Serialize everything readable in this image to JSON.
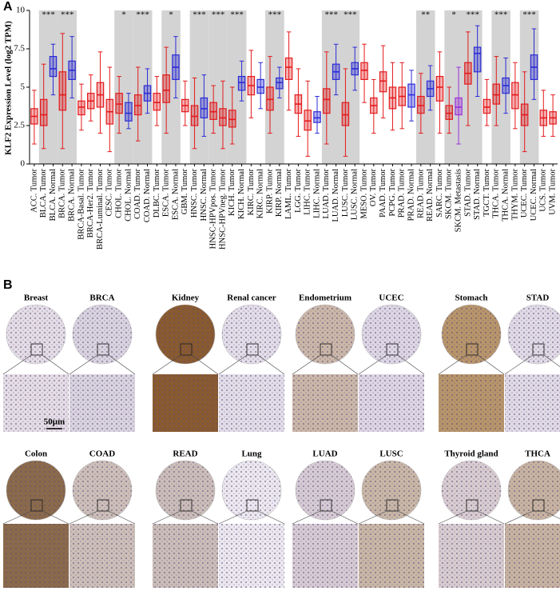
{
  "panel_a": {
    "label": "A"
  },
  "chart_data": {
    "type": "box",
    "y_label": "KLF2 Expression Level (log2 TPM)",
    "ylim": [
      0,
      10
    ],
    "yticks": [
      0,
      2.5,
      5,
      7.5,
      10
    ],
    "categories": [
      "ACC. Tumor",
      "BLCA. Tumor",
      "BLCA. Normal",
      "BRCA. Tumor",
      "BRCA. Normal",
      "BRCA-Basal. Tumor",
      "BRCA-Her2. Tumor",
      "BRCA-Luminal. Tumor",
      "CESC. Tumor",
      "CHOL. Tumor",
      "CHOL. Normal",
      "COAD. Tumor",
      "COAD. Normal",
      "DLBC. Tumor",
      "ESCA. Tumor",
      "ESCA. Normal",
      "GBM. Tumor",
      "HNSC. Tumor",
      "HNSC. Normal",
      "HNSC-HPVpos. Tumor",
      "HNSC-HPVneg. Tumor",
      "KICH. Tumor",
      "KICH. Normal",
      "KIRC. Tumor",
      "KIRC. Normal",
      "KIRP. Tumor",
      "KIRP. Normal",
      "LAML. Tumor",
      "LGG. Tumor",
      "LIHC. Tumor",
      "LIHC. Normal",
      "LUAD. Tumor",
      "LUAD. Normal",
      "LUSC. Tumor",
      "LUSC. Normal",
      "MESO. Tumor",
      "OV. Tumor",
      "PAAD. Tumor",
      "PCPG. Tumor",
      "PRAD. Tumor",
      "PRAD. Normal",
      "READ. Tumor",
      "READ. Normal",
      "SARC. Tumor",
      "SKCM. Tumor",
      "SKCM. Metastasis",
      "STAD. Tumor",
      "STAD. Normal",
      "TGCT. Tumor",
      "THCA. Tumor",
      "THCA. Normal",
      "THYM. Tumor",
      "UCEC. Tumor",
      "UCEC. Normal",
      "UCS. Tumor",
      "UVM. Tumor"
    ],
    "whisker_low": [
      1.3,
      1.0,
      4.5,
      1.0,
      4.3,
      2.2,
      2.8,
      2.0,
      0.8,
      2.0,
      2.3,
      1.5,
      3.3,
      2.5,
      2.0,
      4.3,
      2.5,
      1.0,
      1.8,
      2.0,
      1.0,
      1.3,
      4.1,
      3.0,
      3.6,
      2.0,
      4.3,
      3.5,
      1.8,
      0.5,
      2.0,
      1.3,
      4.5,
      0.5,
      4.8,
      4.0,
      2.0,
      3.0,
      2.2,
      2.3,
      2.8,
      2.0,
      3.5,
      2.0,
      2.0,
      1.3,
      2.5,
      4.4,
      2.5,
      2.5,
      3.3,
      2.3,
      0.8,
      4.2,
      1.8,
      1.8
    ],
    "q1": [
      2.6,
      2.5,
      5.7,
      3.5,
      5.5,
      3.2,
      3.6,
      3.7,
      2.6,
      3.3,
      2.8,
      3.2,
      4.1,
      3.5,
      4.0,
      5.5,
      3.4,
      2.5,
      3.0,
      2.9,
      2.5,
      2.4,
      4.8,
      4.5,
      4.6,
      3.5,
      4.9,
      5.5,
      3.3,
      2.2,
      2.7,
      3.3,
      5.5,
      2.5,
      5.8,
      5.5,
      3.3,
      4.7,
      3.6,
      3.8,
      3.7,
      3.3,
      4.4,
      4.1,
      2.9,
      3.2,
      5.2,
      6.0,
      3.3,
      3.9,
      4.6,
      3.6,
      2.5,
      5.5,
      2.5,
      2.6
    ],
    "median": [
      3.1,
      3.2,
      6.2,
      4.5,
      6.1,
      3.7,
      4.1,
      4.5,
      3.4,
      3.9,
      3.3,
      3.8,
      4.6,
      4.0,
      4.8,
      6.3,
      3.8,
      3.1,
      3.6,
      3.4,
      3.0,
      2.9,
      5.3,
      5.1,
      5.0,
      4.2,
      5.3,
      6.3,
      3.9,
      2.8,
      3.0,
      4.2,
      6.0,
      3.2,
      6.2,
      6.1,
      3.8,
      5.4,
      4.3,
      4.4,
      4.5,
      3.8,
      4.9,
      5.0,
      3.3,
      3.7,
      5.9,
      7.2,
      3.7,
      4.5,
      5.1,
      4.5,
      3.2,
      6.3,
      3.0,
      3.0
    ],
    "q3": [
      3.6,
      4.2,
      7.0,
      6.0,
      6.7,
      4.1,
      4.6,
      5.3,
      4.2,
      4.6,
      4.0,
      4.5,
      5.1,
      4.6,
      5.8,
      7.1,
      4.2,
      3.8,
      4.3,
      4.0,
      3.6,
      3.5,
      5.7,
      5.7,
      5.5,
      5.0,
      5.6,
      6.9,
      4.5,
      3.5,
      3.4,
      4.9,
      6.5,
      4.0,
      6.6,
      6.6,
      4.3,
      6.0,
      5.0,
      5.0,
      5.2,
      4.4,
      5.4,
      5.7,
      3.8,
      4.3,
      6.6,
      7.6,
      4.2,
      5.2,
      5.6,
      5.3,
      3.9,
      7.1,
      3.5,
      3.4
    ],
    "whisker_high": [
      4.8,
      6.5,
      7.8,
      8.5,
      8.3,
      5.2,
      5.8,
      7.3,
      6.3,
      5.7,
      4.6,
      6.3,
      6.2,
      5.7,
      7.6,
      8.3,
      5.4,
      5.6,
      5.8,
      5.1,
      5.4,
      5.0,
      6.7,
      7.4,
      6.6,
      7.0,
      6.3,
      8.6,
      6.2,
      5.4,
      4.4,
      7.3,
      7.8,
      6.2,
      7.6,
      7.8,
      5.5,
      7.7,
      6.6,
      6.6,
      6.1,
      5.9,
      6.4,
      7.3,
      5.0,
      6.3,
      8.6,
      9.0,
      5.5,
      7.0,
      6.9,
      6.6,
      6.0,
      8.8,
      4.8,
      4.5
    ],
    "colors": [
      "#e31a1c",
      "#e31a1c",
      "#2b2bd6",
      "#e31a1c",
      "#2b2bd6",
      "#e31a1c",
      "#e31a1c",
      "#e31a1c",
      "#e31a1c",
      "#e31a1c",
      "#2b2bd6",
      "#e31a1c",
      "#2b2bd6",
      "#e31a1c",
      "#e31a1c",
      "#2b2bd6",
      "#e31a1c",
      "#e31a1c",
      "#2b2bd6",
      "#e31a1c",
      "#e31a1c",
      "#e31a1c",
      "#2b2bd6",
      "#e31a1c",
      "#2b2bd6",
      "#e31a1c",
      "#2b2bd6",
      "#e31a1c",
      "#e31a1c",
      "#e31a1c",
      "#2b2bd6",
      "#e31a1c",
      "#2b2bd6",
      "#e31a1c",
      "#2b2bd6",
      "#e31a1c",
      "#e31a1c",
      "#e31a1c",
      "#e31a1c",
      "#e31a1c",
      "#2b2bd6",
      "#e31a1c",
      "#2b2bd6",
      "#e31a1c",
      "#e31a1c",
      "#9b30d9",
      "#e31a1c",
      "#2b2bd6",
      "#e31a1c",
      "#e31a1c",
      "#2b2bd6",
      "#e31a1c",
      "#e31a1c",
      "#2b2bd6",
      "#e31a1c",
      "#e31a1c"
    ],
    "significance": [
      null,
      null,
      "***",
      null,
      "***",
      null,
      null,
      null,
      null,
      null,
      "*",
      null,
      "***",
      null,
      null,
      "*",
      null,
      null,
      "***",
      null,
      "***",
      null,
      "***",
      null,
      null,
      null,
      "***",
      null,
      null,
      null,
      null,
      null,
      "***",
      null,
      "***",
      null,
      null,
      null,
      null,
      null,
      null,
      null,
      "**",
      null,
      null,
      "*",
      null,
      "***",
      null,
      null,
      "***",
      null,
      null,
      "***",
      null,
      null
    ]
  },
  "panel_b": {
    "label": "B",
    "scale_bar": "50μm",
    "rows": [
      [
        "Breast",
        "BRCA",
        "Kidney",
        "Renal cancer",
        "Endometrium",
        "UCEC",
        "Stomach",
        "STAD"
      ],
      [
        "Colon",
        "COAD",
        "READ",
        "Lung",
        "LUAD",
        "LUSC",
        "Thyroid gland",
        "THCA"
      ]
    ]
  }
}
